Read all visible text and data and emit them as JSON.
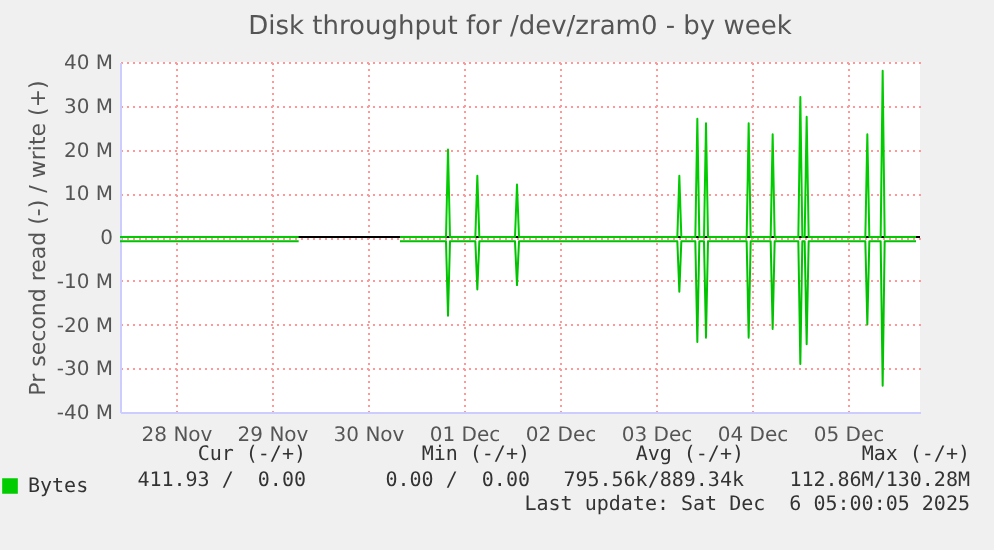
{
  "chart_data": {
    "type": "line",
    "title": "Disk throughput for /dev/zram0 - by week",
    "ylabel": "Pr second read (-) / write (+)",
    "xlim": [
      "2025-11-27T22:00",
      "2025-12-06T06:00"
    ],
    "xticks": [
      {
        "value": "2025-11-28T12:00",
        "label": "28 Nov"
      },
      {
        "value": "2025-11-29T12:00",
        "label": "29 Nov"
      },
      {
        "value": "2025-11-30T12:00",
        "label": "30 Nov"
      },
      {
        "value": "2025-12-01T12:00",
        "label": "01 Dec"
      },
      {
        "value": "2025-12-02T12:00",
        "label": "02 Dec"
      },
      {
        "value": "2025-12-03T12:00",
        "label": "03 Dec"
      },
      {
        "value": "2025-12-04T12:00",
        "label": "04 Dec"
      },
      {
        "value": "2025-12-05T12:00",
        "label": "05 Dec"
      }
    ],
    "ylim": [
      -40,
      40
    ],
    "yticks": [
      {
        "value": -40,
        "label": "-40 M"
      },
      {
        "value": -30,
        "label": "-30 M"
      },
      {
        "value": -20,
        "label": "-20 M"
      },
      {
        "value": -10,
        "label": "-10 M"
      },
      0,
      {
        "value": 10,
        "label": "10 M"
      },
      {
        "value": 20,
        "label": "20 M"
      },
      {
        "value": 30,
        "label": "30 M"
      },
      {
        "value": 40,
        "label": "40 M"
      }
    ],
    "x": [
      "2025-11-27T22:00",
      "2025-11-29T18:40",
      "2025-11-30T08:00",
      "2025-11-30T20:00",
      "2025-12-01T07:30",
      "2025-12-01T08:00",
      "2025-12-01T08:30",
      "2025-12-01T14:50",
      "2025-12-01T15:20",
      "2025-12-01T15:50",
      "2025-12-02T00:45",
      "2025-12-02T01:15",
      "2025-12-02T01:45",
      "2025-12-03T17:20",
      "2025-12-03T17:50",
      "2025-12-03T18:20",
      "2025-12-03T21:50",
      "2025-12-03T22:20",
      "2025-12-03T22:50",
      "2025-12-04T00:00",
      "2025-12-04T00:30",
      "2025-12-04T01:00",
      "2025-12-04T10:40",
      "2025-12-04T11:10",
      "2025-12-04T11:40",
      "2025-12-04T16:40",
      "2025-12-04T17:10",
      "2025-12-04T17:40",
      "2025-12-04T23:35",
      "2025-12-05T00:05",
      "2025-12-05T00:35",
      "2025-12-05T01:10",
      "2025-12-05T01:40",
      "2025-12-05T02:10",
      "2025-12-05T16:20",
      "2025-12-05T16:50",
      "2025-12-05T17:20",
      "2025-12-05T20:10",
      "2025-12-05T20:40",
      "2025-12-05T21:10",
      "2025-12-06T05:00"
    ],
    "series": [
      {
        "name": "Bytes",
        "color": "#00cc00",
        "values": [
          0,
          0,
          null,
          0,
          0,
          20,
          0,
          0,
          14,
          0,
          0,
          12,
          0,
          0,
          14,
          0,
          0,
          27,
          0,
          0,
          26,
          0,
          0,
          26,
          0,
          0,
          23.5,
          0,
          0,
          32,
          0,
          0,
          27.5,
          0,
          0,
          23.5,
          0,
          0,
          38,
          0,
          0
        ]
      },
      {
        "color": "#00c400",
        "values": [
          -1,
          -1,
          null,
          -1,
          -1,
          -18,
          -1,
          -1,
          -12,
          -1,
          -1,
          -11,
          -1,
          -1,
          -12.5,
          -1,
          -1,
          -24,
          -1,
          -1,
          -23,
          -1,
          -1,
          -23,
          -1,
          -1,
          -21,
          -1,
          -1,
          -29,
          -1,
          -1,
          -24.5,
          -1,
          -1,
          -20,
          -1,
          -1,
          -34,
          -1,
          -1
        ]
      }
    ],
    "ref_lines": [
      {
        "axis": "y",
        "value": 0,
        "color": "#000000"
      }
    ],
    "grid": true,
    "legend": "bottom",
    "annotations": [
      "Cur (-/+)",
      "Min (-/+)",
      "Avg (-/+)",
      "Max (-/+)",
      "411.93 /  0.00",
      "0.00 /  0.00",
      "795.56k/889.34k",
      "112.86M/130.28M",
      "Last update: Sat Dec  6 05:00:05 2025"
    ]
  }
}
